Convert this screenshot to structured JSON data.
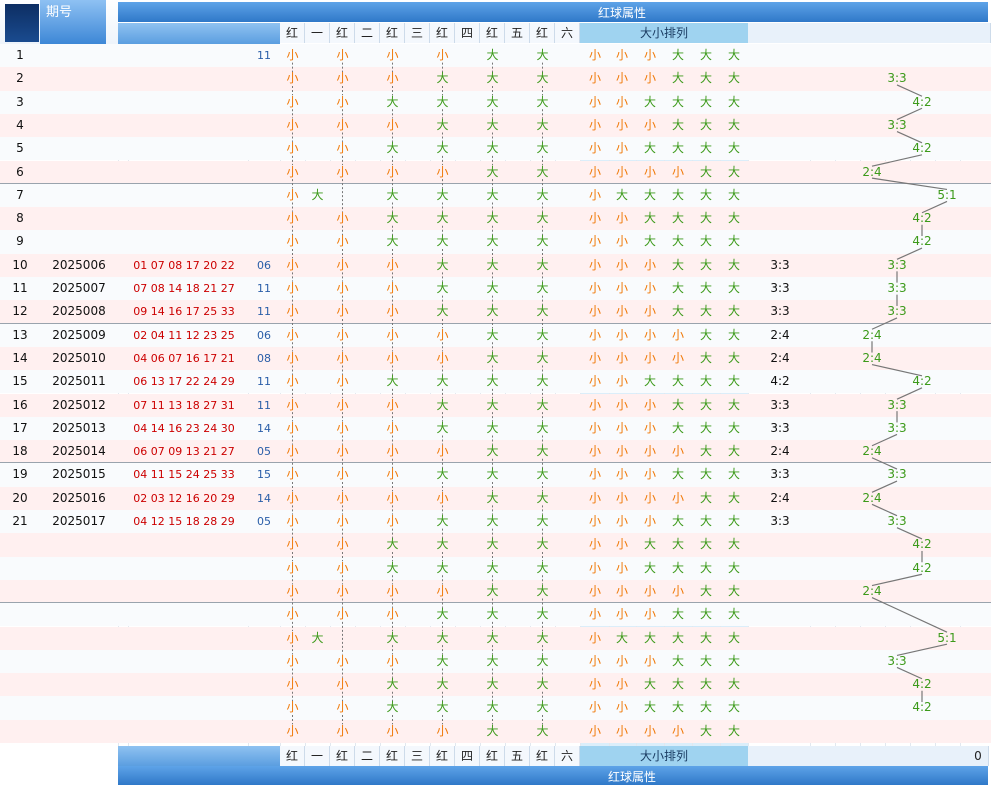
{
  "header": {
    "period_label": "期号",
    "group_title": "红球属性",
    "col_labels": [
      "红",
      "一",
      "红",
      "二",
      "红",
      "三",
      "红",
      "四",
      "红",
      "五",
      "红",
      "六"
    ],
    "size_title": "大小排列"
  },
  "footer": {
    "group_title": "红球属性",
    "col_labels": [
      "红",
      "一",
      "红",
      "二",
      "红",
      "三",
      "红",
      "四",
      "红",
      "五",
      "红",
      "六"
    ],
    "size_title": "大小排列",
    "right_value": "0"
  },
  "rows": [
    {
      "idx": "1",
      "period": "",
      "balls": "",
      "blue": "11",
      "dims": [
        "小",
        "",
        "小",
        "",
        "小",
        "",
        "小",
        "",
        "大",
        "",
        "大",
        ""
      ],
      "size": [
        "小",
        "小",
        "小",
        "大",
        "大",
        "大"
      ],
      "ratio": "",
      "tr": ""
    },
    {
      "idx": "2",
      "period": "",
      "balls": "",
      "blue": "",
      "dims": [
        "小",
        "",
        "小",
        "",
        "小",
        "",
        "大",
        "",
        "大",
        "",
        "大",
        ""
      ],
      "size": [
        "小",
        "小",
        "小",
        "大",
        "大",
        "大"
      ],
      "ratio": "",
      "tr": "3:3"
    },
    {
      "idx": "3",
      "period": "",
      "balls": "",
      "blue": "",
      "dims": [
        "小",
        "",
        "小",
        "",
        "大",
        "",
        "大",
        "",
        "大",
        "",
        "大",
        ""
      ],
      "size": [
        "小",
        "小",
        "大",
        "大",
        "大",
        "大"
      ],
      "ratio": "",
      "tr": "4:2"
    },
    {
      "idx": "4",
      "period": "",
      "balls": "",
      "blue": "",
      "dims": [
        "小",
        "",
        "小",
        "",
        "小",
        "",
        "大",
        "",
        "大",
        "",
        "大",
        ""
      ],
      "size": [
        "小",
        "小",
        "小",
        "大",
        "大",
        "大"
      ],
      "ratio": "",
      "tr": "3:3"
    },
    {
      "idx": "5",
      "period": "",
      "balls": "",
      "blue": "",
      "dims": [
        "小",
        "",
        "小",
        "",
        "大",
        "",
        "大",
        "",
        "大",
        "",
        "大",
        ""
      ],
      "size": [
        "小",
        "小",
        "大",
        "大",
        "大",
        "大"
      ],
      "ratio": "",
      "tr": "4:2"
    },
    {
      "idx": "6",
      "period": "",
      "balls": "",
      "blue": "",
      "dims": [
        "小",
        "",
        "小",
        "",
        "小",
        "",
        "小",
        "",
        "大",
        "",
        "大",
        ""
      ],
      "size": [
        "小",
        "小",
        "小",
        "小",
        "大",
        "大"
      ],
      "ratio": "",
      "tr": "2:4"
    },
    {
      "idx": "7",
      "period": "",
      "balls": "",
      "blue": "",
      "dims": [
        "小",
        "大",
        "",
        "",
        "大",
        "",
        "大",
        "",
        "大",
        "",
        "大",
        ""
      ],
      "size": [
        "小",
        "大",
        "大",
        "大",
        "大",
        "大"
      ],
      "ratio": "",
      "tr": "5:1"
    },
    {
      "idx": "8",
      "period": "",
      "balls": "",
      "blue": "",
      "dims": [
        "小",
        "",
        "小",
        "",
        "大",
        "",
        "大",
        "",
        "大",
        "",
        "大",
        ""
      ],
      "size": [
        "小",
        "小",
        "大",
        "大",
        "大",
        "大"
      ],
      "ratio": "",
      "tr": "4:2"
    },
    {
      "idx": "9",
      "period": "",
      "balls": "",
      "blue": "",
      "dims": [
        "小",
        "",
        "小",
        "",
        "大",
        "",
        "大",
        "",
        "大",
        "",
        "大",
        ""
      ],
      "size": [
        "小",
        "小",
        "大",
        "大",
        "大",
        "大"
      ],
      "ratio": "",
      "tr": "4:2"
    },
    {
      "idx": "10",
      "period": "2025006",
      "balls": "01 07 08 17 20 22",
      "blue": "06",
      "dims": [
        "小",
        "",
        "小",
        "",
        "小",
        "",
        "大",
        "",
        "大",
        "",
        "大",
        ""
      ],
      "size": [
        "小",
        "小",
        "小",
        "大",
        "大",
        "大"
      ],
      "ratio": "3:3",
      "tr": "3:3"
    },
    {
      "idx": "11",
      "period": "2025007",
      "balls": "07 08 14 18 21 27",
      "blue": "11",
      "dims": [
        "小",
        "",
        "小",
        "",
        "小",
        "",
        "大",
        "",
        "大",
        "",
        "大",
        ""
      ],
      "size": [
        "小",
        "小",
        "小",
        "大",
        "大",
        "大"
      ],
      "ratio": "3:3",
      "tr": "3:3"
    },
    {
      "idx": "12",
      "period": "2025008",
      "balls": "09 14 16 17 25 33",
      "blue": "11",
      "dims": [
        "小",
        "",
        "小",
        "",
        "小",
        "",
        "大",
        "",
        "大",
        "",
        "大",
        ""
      ],
      "size": [
        "小",
        "小",
        "小",
        "大",
        "大",
        "大"
      ],
      "ratio": "3:3",
      "tr": "3:3"
    },
    {
      "idx": "13",
      "period": "2025009",
      "balls": "02 04 11 12 23 25",
      "blue": "06",
      "dims": [
        "小",
        "",
        "小",
        "",
        "小",
        "",
        "小",
        "",
        "大",
        "",
        "大",
        ""
      ],
      "size": [
        "小",
        "小",
        "小",
        "小",
        "大",
        "大"
      ],
      "ratio": "2:4",
      "tr": "2:4"
    },
    {
      "idx": "14",
      "period": "2025010",
      "balls": "04 06 07 16 17 21",
      "blue": "08",
      "dims": [
        "小",
        "",
        "小",
        "",
        "小",
        "",
        "小",
        "",
        "大",
        "",
        "大",
        ""
      ],
      "size": [
        "小",
        "小",
        "小",
        "小",
        "大",
        "大"
      ],
      "ratio": "2:4",
      "tr": "2:4"
    },
    {
      "idx": "15",
      "period": "2025011",
      "balls": "06 13 17 22 24 29",
      "blue": "11",
      "dims": [
        "小",
        "",
        "小",
        "",
        "大",
        "",
        "大",
        "",
        "大",
        "",
        "大",
        ""
      ],
      "size": [
        "小",
        "小",
        "大",
        "大",
        "大",
        "大"
      ],
      "ratio": "4:2",
      "tr": "4:2"
    },
    {
      "idx": "16",
      "period": "2025012",
      "balls": "07 11 13 18 27 31",
      "blue": "11",
      "dims": [
        "小",
        "",
        "小",
        "",
        "小",
        "",
        "大",
        "",
        "大",
        "",
        "大",
        ""
      ],
      "size": [
        "小",
        "小",
        "小",
        "大",
        "大",
        "大"
      ],
      "ratio": "3:3",
      "tr": "3:3"
    },
    {
      "idx": "17",
      "period": "2025013",
      "balls": "04 14 16 23 24 30",
      "blue": "14",
      "dims": [
        "小",
        "",
        "小",
        "",
        "小",
        "",
        "大",
        "",
        "大",
        "",
        "大",
        ""
      ],
      "size": [
        "小",
        "小",
        "小",
        "大",
        "大",
        "大"
      ],
      "ratio": "3:3",
      "tr": "3:3"
    },
    {
      "idx": "18",
      "period": "2025014",
      "balls": "06 07 09 13 21 27",
      "blue": "05",
      "dims": [
        "小",
        "",
        "小",
        "",
        "小",
        "",
        "小",
        "",
        "大",
        "",
        "大",
        ""
      ],
      "size": [
        "小",
        "小",
        "小",
        "小",
        "大",
        "大"
      ],
      "ratio": "2:4",
      "tr": "2:4"
    },
    {
      "idx": "19",
      "period": "2025015",
      "balls": "04 11 15 24 25 33",
      "blue": "15",
      "dims": [
        "小",
        "",
        "小",
        "",
        "小",
        "",
        "大",
        "",
        "大",
        "",
        "大",
        ""
      ],
      "size": [
        "小",
        "小",
        "小",
        "大",
        "大",
        "大"
      ],
      "ratio": "3:3",
      "tr": "3:3"
    },
    {
      "idx": "20",
      "period": "2025016",
      "balls": "02 03 12 16 20 29",
      "blue": "14",
      "dims": [
        "小",
        "",
        "小",
        "",
        "小",
        "",
        "小",
        "",
        "大",
        "",
        "大",
        ""
      ],
      "size": [
        "小",
        "小",
        "小",
        "小",
        "大",
        "大"
      ],
      "ratio": "2:4",
      "tr": "2:4"
    },
    {
      "idx": "21",
      "period": "2025017",
      "balls": "04 12 15 18 28 29",
      "blue": "05",
      "dims": [
        "小",
        "",
        "小",
        "",
        "小",
        "",
        "大",
        "",
        "大",
        "",
        "大",
        ""
      ],
      "size": [
        "小",
        "小",
        "小",
        "大",
        "大",
        "大"
      ],
      "ratio": "3:3",
      "tr": "3:3"
    },
    {
      "idx": "",
      "period": "",
      "balls": "",
      "blue": "",
      "dims": [
        "小",
        "",
        "小",
        "",
        "大",
        "",
        "大",
        "",
        "大",
        "",
        "大",
        ""
      ],
      "size": [
        "小",
        "小",
        "大",
        "大",
        "大",
        "大"
      ],
      "ratio": "",
      "tr": "4:2"
    },
    {
      "idx": "",
      "period": "",
      "balls": "",
      "blue": "",
      "dims": [
        "小",
        "",
        "小",
        "",
        "大",
        "",
        "大",
        "",
        "大",
        "",
        "大",
        ""
      ],
      "size": [
        "小",
        "小",
        "大",
        "大",
        "大",
        "大"
      ],
      "ratio": "",
      "tr": "4:2"
    },
    {
      "idx": "",
      "period": "",
      "balls": "",
      "blue": "",
      "dims": [
        "小",
        "",
        "小",
        "",
        "小",
        "",
        "小",
        "",
        "大",
        "",
        "大",
        ""
      ],
      "size": [
        "小",
        "小",
        "小",
        "小",
        "大",
        "大"
      ],
      "ratio": "",
      "tr": "2:4"
    },
    {
      "idx": "",
      "period": "",
      "balls": "",
      "blue": "",
      "dims": [
        "小",
        "",
        "小",
        "",
        "小",
        "",
        "大",
        "",
        "大",
        "",
        "大",
        ""
      ],
      "size": [
        "小",
        "小",
        "小",
        "大",
        "大",
        "大"
      ],
      "ratio": "",
      "tr": ""
    },
    {
      "idx": "",
      "period": "",
      "balls": "",
      "blue": "",
      "dims": [
        "小",
        "大",
        "",
        "",
        "大",
        "",
        "大",
        "",
        "大",
        "",
        "大",
        ""
      ],
      "size": [
        "小",
        "大",
        "大",
        "大",
        "大",
        "大"
      ],
      "ratio": "",
      "tr": "5:1"
    },
    {
      "idx": "",
      "period": "",
      "balls": "",
      "blue": "",
      "dims": [
        "小",
        "",
        "小",
        "",
        "小",
        "",
        "大",
        "",
        "大",
        "",
        "大",
        ""
      ],
      "size": [
        "小",
        "小",
        "小",
        "大",
        "大",
        "大"
      ],
      "ratio": "",
      "tr": "3:3"
    },
    {
      "idx": "",
      "period": "",
      "balls": "",
      "blue": "",
      "dims": [
        "小",
        "",
        "小",
        "",
        "大",
        "",
        "大",
        "",
        "大",
        "",
        "大",
        ""
      ],
      "size": [
        "小",
        "小",
        "大",
        "大",
        "大",
        "大"
      ],
      "ratio": "",
      "tr": "4:2"
    },
    {
      "idx": "",
      "period": "",
      "balls": "",
      "blue": "",
      "dims": [
        "小",
        "",
        "小",
        "",
        "大",
        "",
        "大",
        "",
        "大",
        "",
        "大",
        ""
      ],
      "size": [
        "小",
        "小",
        "大",
        "大",
        "大",
        "大"
      ],
      "ratio": "",
      "tr": "4:2"
    },
    {
      "idx": "",
      "period": "",
      "balls": "",
      "blue": "",
      "dims": [
        "小",
        "",
        "小",
        "",
        "小",
        "",
        "小",
        "",
        "大",
        "",
        "大",
        ""
      ],
      "size": [
        "小",
        "小",
        "小",
        "小",
        "大",
        "大"
      ],
      "ratio": "",
      "tr": ""
    }
  ]
}
